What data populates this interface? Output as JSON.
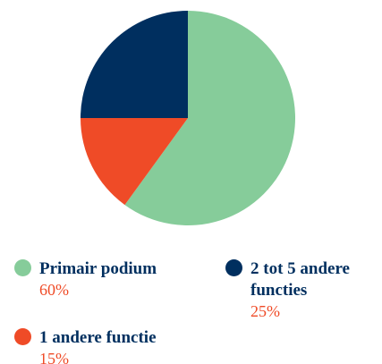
{
  "chart_data": {
    "type": "pie",
    "categories": [
      "Primair podium",
      "1 andere functie",
      "2 tot 5 andere functies"
    ],
    "values": [
      60,
      15,
      25
    ],
    "value_labels": [
      "60%",
      "15%",
      "25%"
    ],
    "colors": [
      "#86cc9a",
      "#ef4b27",
      "#002f5f"
    ]
  }
}
